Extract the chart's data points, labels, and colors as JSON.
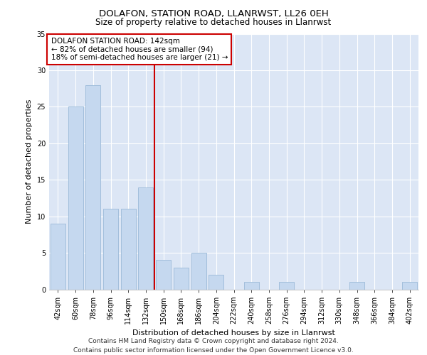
{
  "title1": "DOLAFON, STATION ROAD, LLANRWST, LL26 0EH",
  "title2": "Size of property relative to detached houses in Llanrwst",
  "xlabel": "Distribution of detached houses by size in Llanrwst",
  "ylabel": "Number of detached properties",
  "bar_labels": [
    "42sqm",
    "60sqm",
    "78sqm",
    "96sqm",
    "114sqm",
    "132sqm",
    "150sqm",
    "168sqm",
    "186sqm",
    "204sqm",
    "222sqm",
    "240sqm",
    "258sqm",
    "276sqm",
    "294sqm",
    "312sqm",
    "330sqm",
    "348sqm",
    "366sqm",
    "384sqm",
    "402sqm"
  ],
  "bar_values": [
    9,
    25,
    28,
    11,
    11,
    14,
    4,
    3,
    5,
    2,
    0,
    1,
    0,
    1,
    0,
    0,
    0,
    1,
    0,
    0,
    1
  ],
  "bar_color": "#c5d8ef",
  "bar_edge_color": "#9bbad8",
  "vline_x": 5.5,
  "vline_color": "#cc0000",
  "annotation_text": "DOLAFON STATION ROAD: 142sqm\n← 82% of detached houses are smaller (94)\n18% of semi-detached houses are larger (21) →",
  "annotation_box_color": "#ffffff",
  "annotation_box_edge": "#cc0000",
  "ylim": [
    0,
    35
  ],
  "yticks": [
    0,
    5,
    10,
    15,
    20,
    25,
    30,
    35
  ],
  "background_color": "#dce6f5",
  "grid_color": "#ffffff",
  "footer": "Contains HM Land Registry data © Crown copyright and database right 2024.\nContains public sector information licensed under the Open Government Licence v3.0.",
  "title1_fontsize": 9.5,
  "title2_fontsize": 8.5,
  "xlabel_fontsize": 8,
  "ylabel_fontsize": 8,
  "tick_fontsize": 7,
  "annotation_fontsize": 7.5,
  "footer_fontsize": 6.5
}
